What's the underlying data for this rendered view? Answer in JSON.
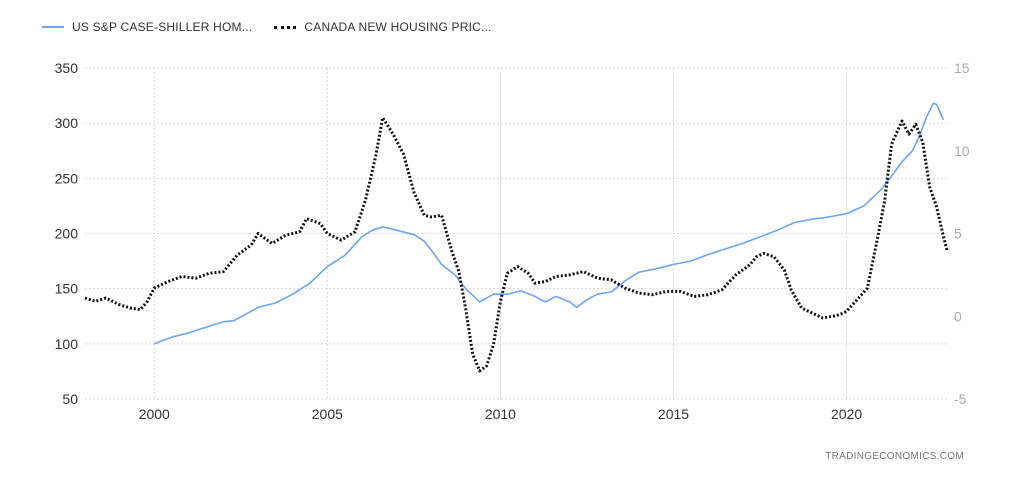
{
  "legend": {
    "series1_label": "US S&P CASE-SHILLER HOM...",
    "series2_label": "CANADA NEW HOUSING PRIC..."
  },
  "watermark": "TRADINGECONOMICS.COM",
  "colors": {
    "series1": "#6aa6f2",
    "series2": "#111111",
    "grid": "#d9d9d9"
  },
  "chart_data": {
    "type": "line",
    "title": "",
    "grid": true,
    "legend_position": "top-left",
    "x_ticks": [
      2000,
      2005,
      2010,
      2015,
      2020
    ],
    "xlim": [
      1998.0,
      2022.9
    ],
    "left_axis": {
      "ylim": [
        50,
        350
      ],
      "ticks": [
        50,
        100,
        150,
        200,
        250,
        300,
        350
      ]
    },
    "right_axis": {
      "ylim": [
        -5,
        15
      ],
      "ticks": [
        -5,
        0,
        5,
        10,
        15
      ]
    },
    "series": [
      {
        "name": "US S&P CASE-SHILLER HOM...",
        "axis": "left",
        "style": "solid",
        "points": [
          [
            2000.0,
            100
          ],
          [
            2000.5,
            106
          ],
          [
            2001.0,
            110
          ],
          [
            2001.5,
            115
          ],
          [
            2002.0,
            120
          ],
          [
            2002.3,
            121
          ],
          [
            2002.6,
            126
          ],
          [
            2003.0,
            133
          ],
          [
            2003.5,
            137
          ],
          [
            2004.0,
            145
          ],
          [
            2004.5,
            155
          ],
          [
            2005.0,
            170
          ],
          [
            2005.5,
            180
          ],
          [
            2006.0,
            197
          ],
          [
            2006.3,
            203
          ],
          [
            2006.6,
            206
          ],
          [
            2007.0,
            203
          ],
          [
            2007.5,
            199
          ],
          [
            2007.8,
            193
          ],
          [
            2008.0,
            185
          ],
          [
            2008.3,
            172
          ],
          [
            2008.7,
            162
          ],
          [
            2009.0,
            150
          ],
          [
            2009.4,
            138
          ],
          [
            2009.8,
            145
          ],
          [
            2010.2,
            145
          ],
          [
            2010.6,
            148
          ],
          [
            2011.0,
            143
          ],
          [
            2011.3,
            138
          ],
          [
            2011.6,
            143
          ],
          [
            2012.0,
            138
          ],
          [
            2012.2,
            133
          ],
          [
            2012.5,
            140
          ],
          [
            2012.8,
            145
          ],
          [
            2013.2,
            147
          ],
          [
            2013.6,
            157
          ],
          [
            2014.0,
            165
          ],
          [
            2014.5,
            168
          ],
          [
            2015.0,
            172
          ],
          [
            2015.5,
            175
          ],
          [
            2016.0,
            181
          ],
          [
            2016.5,
            186
          ],
          [
            2017.0,
            191
          ],
          [
            2017.5,
            197
          ],
          [
            2018.0,
            203
          ],
          [
            2018.5,
            210
          ],
          [
            2019.0,
            213
          ],
          [
            2019.5,
            215
          ],
          [
            2020.0,
            218
          ],
          [
            2020.5,
            225
          ],
          [
            2021.0,
            240
          ],
          [
            2021.3,
            252
          ],
          [
            2021.6,
            265
          ],
          [
            2021.9,
            275
          ],
          [
            2022.1,
            288
          ],
          [
            2022.3,
            305
          ],
          [
            2022.5,
            318
          ],
          [
            2022.6,
            317
          ],
          [
            2022.8,
            303
          ]
        ]
      },
      {
        "name": "CANADA NEW HOUSING PRIC...",
        "axis": "right",
        "style": "dotted",
        "points": [
          [
            1998.0,
            1.1
          ],
          [
            1998.3,
            0.9
          ],
          [
            1998.6,
            1.1
          ],
          [
            1999.0,
            0.7
          ],
          [
            1999.3,
            0.5
          ],
          [
            1999.6,
            0.4
          ],
          [
            1999.8,
            0.9
          ],
          [
            2000.0,
            1.7
          ],
          [
            2000.4,
            2.1
          ],
          [
            2000.8,
            2.4
          ],
          [
            2001.2,
            2.3
          ],
          [
            2001.6,
            2.6
          ],
          [
            2002.0,
            2.7
          ],
          [
            2002.4,
            3.7
          ],
          [
            2002.8,
            4.3
          ],
          [
            2003.0,
            5.0
          ],
          [
            2003.4,
            4.4
          ],
          [
            2003.8,
            4.9
          ],
          [
            2004.2,
            5.1
          ],
          [
            2004.4,
            5.9
          ],
          [
            2004.8,
            5.6
          ],
          [
            2005.0,
            5.0
          ],
          [
            2005.4,
            4.6
          ],
          [
            2005.8,
            5.1
          ],
          [
            2006.1,
            7.0
          ],
          [
            2006.4,
            9.7
          ],
          [
            2006.6,
            12.0
          ],
          [
            2006.9,
            11.0
          ],
          [
            2007.2,
            9.8
          ],
          [
            2007.5,
            7.5
          ],
          [
            2007.8,
            6.1
          ],
          [
            2008.0,
            6.0
          ],
          [
            2008.3,
            6.1
          ],
          [
            2008.6,
            3.9
          ],
          [
            2008.8,
            2.7
          ],
          [
            2009.0,
            0.4
          ],
          [
            2009.2,
            -2.3
          ],
          [
            2009.4,
            -3.3
          ],
          [
            2009.6,
            -3.0
          ],
          [
            2009.8,
            -1.7
          ],
          [
            2010.0,
            0.9
          ],
          [
            2010.2,
            2.6
          ],
          [
            2010.5,
            3.0
          ],
          [
            2010.8,
            2.6
          ],
          [
            2011.0,
            2.0
          ],
          [
            2011.3,
            2.1
          ],
          [
            2011.6,
            2.4
          ],
          [
            2012.0,
            2.5
          ],
          [
            2012.4,
            2.7
          ],
          [
            2012.8,
            2.3
          ],
          [
            2013.2,
            2.2
          ],
          [
            2013.6,
            1.7
          ],
          [
            2014.0,
            1.4
          ],
          [
            2014.4,
            1.3
          ],
          [
            2014.8,
            1.5
          ],
          [
            2015.2,
            1.5
          ],
          [
            2015.6,
            1.2
          ],
          [
            2016.0,
            1.3
          ],
          [
            2016.4,
            1.6
          ],
          [
            2016.8,
            2.5
          ],
          [
            2017.2,
            3.1
          ],
          [
            2017.4,
            3.6
          ],
          [
            2017.6,
            3.8
          ],
          [
            2017.9,
            3.6
          ],
          [
            2018.2,
            2.8
          ],
          [
            2018.4,
            1.6
          ],
          [
            2018.7,
            0.5
          ],
          [
            2019.0,
            0.2
          ],
          [
            2019.3,
            -0.1
          ],
          [
            2019.6,
            0.0
          ],
          [
            2019.8,
            0.1
          ],
          [
            2020.0,
            0.3
          ],
          [
            2020.3,
            1.0
          ],
          [
            2020.6,
            1.7
          ],
          [
            2020.9,
            4.8
          ],
          [
            2021.1,
            7.0
          ],
          [
            2021.3,
            10.4
          ],
          [
            2021.6,
            11.8
          ],
          [
            2021.8,
            11.0
          ],
          [
            2022.0,
            11.6
          ],
          [
            2022.2,
            10.5
          ],
          [
            2022.4,
            7.8
          ],
          [
            2022.6,
            6.6
          ],
          [
            2022.8,
            4.8
          ],
          [
            2022.9,
            4.0
          ]
        ]
      }
    ]
  }
}
